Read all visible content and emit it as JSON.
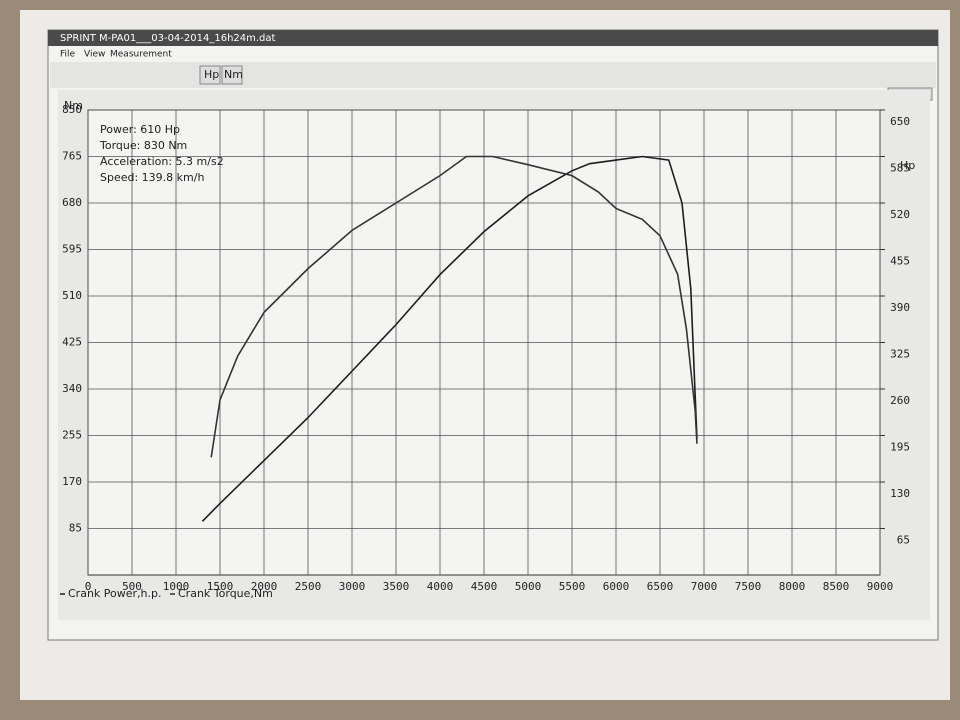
{
  "window": {
    "title": "SPRINT M-PA01___03-04-2014_16h24m.dat",
    "menu": [
      "File",
      "View",
      "Measurement"
    ],
    "toolbar": [
      "Hp",
      "Nm"
    ]
  },
  "chart_data": {
    "type": "line",
    "y_label": "Nm",
    "y2_label": "Hp",
    "annotations": [
      "Power: 610 Hp",
      "Torque: 830 Nm",
      "Acceleration: 5.3 m/s2",
      "Speed: 139.8 km/h"
    ],
    "xlim": [
      0,
      9000
    ],
    "xticks": [
      0,
      500,
      1000,
      1500,
      2000,
      2500,
      3000,
      3500,
      4000,
      4500,
      5000,
      5500,
      6000,
      6500,
      7000,
      7500,
      8000,
      8500,
      9000
    ],
    "ylim": [
      0,
      850
    ],
    "yticks": [
      85,
      170,
      255,
      340,
      425,
      510,
      595,
      680,
      765,
      850
    ],
    "y2lim": [
      0,
      650
    ],
    "y2ticks": [
      65,
      130,
      195,
      260,
      325,
      390,
      455,
      520,
      585,
      650
    ],
    "grid": true,
    "series": [
      {
        "name": "Crank Power,h.p.",
        "color": "#1e1e1e",
        "axis": "y2",
        "x": [
          1300,
          1500,
          2000,
          2500,
          3000,
          3500,
          4000,
          4500,
          5000,
          5500,
          5700,
          6000,
          6300,
          6600,
          6750,
          6850,
          6920
        ],
        "values": [
          75,
          100,
          160,
          220,
          285,
          350,
          420,
          480,
          530,
          565,
          575,
          580,
          585,
          580,
          520,
          400,
          190
        ]
      },
      {
        "name": "Crank Torque,Nm",
        "color": "#333333",
        "x": [
          1400,
          1500,
          1700,
          2000,
          2500,
          3000,
          3500,
          4000,
          4300,
          4600,
          5000,
          5500,
          5800,
          6000,
          6300,
          6500,
          6700,
          6800,
          6900,
          6920
        ],
        "values": [
          215,
          320,
          400,
          480,
          560,
          630,
          680,
          730,
          765,
          765,
          750,
          730,
          700,
          670,
          650,
          620,
          550,
          450,
          300,
          240
        ]
      }
    ]
  }
}
